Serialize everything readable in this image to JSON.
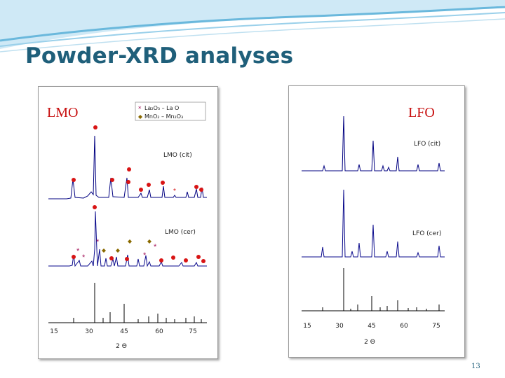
{
  "title": "Powder-XRD analyses",
  "page_number": "13",
  "colors": {
    "title": "#1f5f7a",
    "band_light": "#cfe9f6",
    "band_mid": "#6ab8dc",
    "trace_top": "#000080",
    "trace_mid": "#0a0a8c",
    "trace_bottom": "#000000",
    "marker_circle": "#d81414",
    "marker_asterisk": "#a4145a",
    "marker_diamond": "#8a6a00"
  },
  "lmo": {
    "heading": "LMO",
    "legend": {
      "line1": "La₂O₃ – La O",
      "line2": "MnO₂ – Mn₂O₃"
    },
    "trace_labels": {
      "cit": "LMO (cit)",
      "cer": "LMO (cer)"
    },
    "x_ticks": [
      "15",
      "30",
      "45",
      "60",
      "75"
    ],
    "x_label": "2 Θ"
  },
  "lfo": {
    "heading": "LFO",
    "trace_labels": {
      "cit": "LFO (cit)",
      "cer": "LFO (cer)"
    },
    "x_ticks": [
      "15",
      "30",
      "45",
      "60",
      "75"
    ],
    "x_label": "2 Θ"
  }
}
